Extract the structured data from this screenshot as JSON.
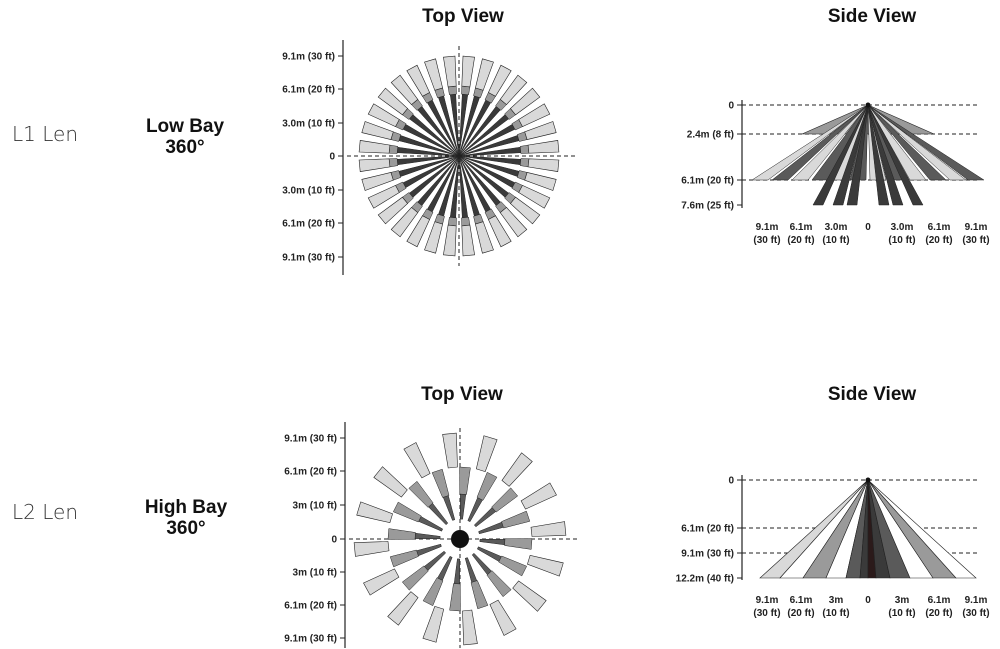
{
  "row1": {
    "lens": "L1 Len",
    "mode_title": "Low Bay",
    "mode_angle": "360°",
    "top_view_title": "Top View",
    "side_view_title": "Side View",
    "top_axis_labels": [
      "9.1m (30 ft)",
      "6.1m (20 ft)",
      "3.0m (10 ft)",
      "0",
      "3.0m (10 ft)",
      "6.1m (20 ft)",
      "9.1m (30 ft)"
    ],
    "side_y_labels": [
      "0",
      "2.4m (8 ft)",
      "6.1m (20 ft)",
      "7.6m (25 ft)"
    ],
    "side_x_labels": [
      {
        "top": "9.1m",
        "bot": "(30 ft)"
      },
      {
        "top": "6.1m",
        "bot": "(20 ft)"
      },
      {
        "top": "3.0m",
        "bot": "(10 ft)"
      },
      {
        "top": "0",
        "bot": ""
      },
      {
        "top": "3.0m",
        "bot": "(10 ft)"
      },
      {
        "top": "6.1m",
        "bot": "(20 ft)"
      },
      {
        "top": "9.1m",
        "bot": "(30 ft)"
      }
    ]
  },
  "row2": {
    "lens": "L2 Len",
    "mode_title": "High Bay",
    "mode_angle": "360°",
    "top_view_title": "Top View",
    "side_view_title": "Side View",
    "top_axis_labels": [
      "9.1m (30 ft)",
      "6.1m (20 ft)",
      "3m (10 ft)",
      "0",
      "3m (10 ft)",
      "6.1m (20 ft)",
      "9.1m (30 ft)"
    ],
    "side_y_labels": [
      "0",
      "6.1m (20 ft)",
      "9.1m (30 ft)",
      "12.2m (40 ft)"
    ],
    "side_x_labels": [
      {
        "top": "9.1m",
        "bot": "(30 ft)"
      },
      {
        "top": "6.1m",
        "bot": "(20 ft)"
      },
      {
        "top": "3m",
        "bot": "(10 ft)"
      },
      {
        "top": "0",
        "bot": ""
      },
      {
        "top": "3m",
        "bot": "(10 ft)"
      },
      {
        "top": "6.1m",
        "bot": "(20 ft)"
      },
      {
        "top": "9.1m",
        "bot": "(30 ft)"
      }
    ]
  },
  "colors": {
    "light": "#d9d9d9",
    "mid": "#9a9a9a",
    "dark": "#5a5a5a",
    "darkest": "#3a3a3a",
    "core": "#2b1a1a"
  }
}
